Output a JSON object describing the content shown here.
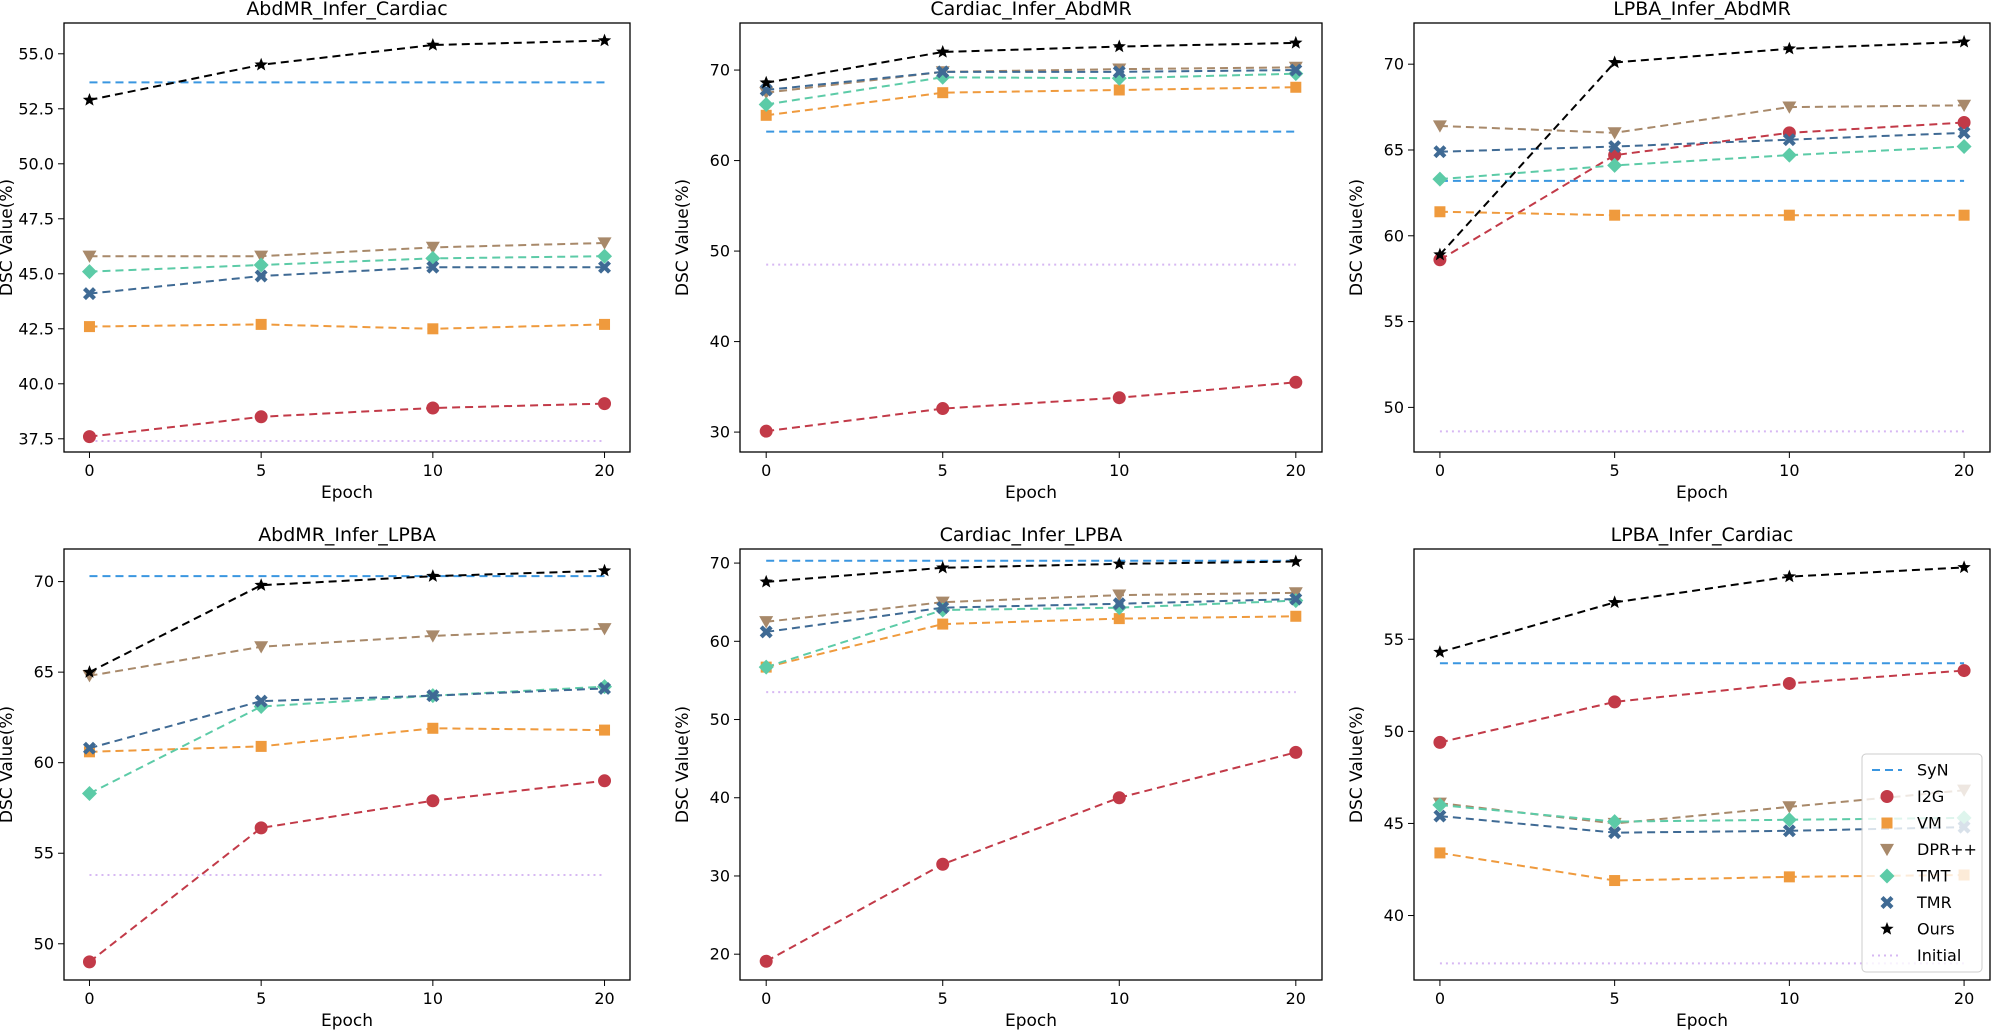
{
  "chart_data": {
    "type": "line",
    "x_categories": [
      "0",
      "5",
      "10",
      "20"
    ],
    "xlabel": "Epoch",
    "ylabel": "DSC Value(%)",
    "series_styles": {
      "SyN": {
        "color": "#3a96e0",
        "marker": "none",
        "dash": "dashed"
      },
      "I2G": {
        "color": "#c23a48",
        "marker": "circle",
        "dash": "dashed"
      },
      "VM": {
        "color": "#ef9a3d",
        "marker": "square",
        "dash": "dashed"
      },
      "DPR++": {
        "color": "#a8896a",
        "marker": "triangle",
        "dash": "dashed"
      },
      "TMT": {
        "color": "#5ccba7",
        "marker": "diamond",
        "dash": "dashed"
      },
      "TMR": {
        "color": "#3f6a94",
        "marker": "x",
        "dash": "dashed"
      },
      "Ours": {
        "color": "#000000",
        "marker": "star",
        "dash": "dashed"
      },
      "Initial": {
        "color": "#d7b8f3",
        "marker": "none",
        "dash": "dotted"
      }
    },
    "legend": {
      "position": "lower-right of LPBA_Infer_Cardiac panel",
      "entries": [
        "SyN",
        "I2G",
        "VM",
        "DPR++",
        "TMT",
        "TMR",
        "Ours",
        "Initial"
      ]
    },
    "panels": [
      {
        "title": "AbdMR_Infer_Cardiac",
        "ylim": [
          36.9,
          56.4
        ],
        "yticks": [
          "37.5",
          "40.0",
          "42.5",
          "45.0",
          "47.5",
          "50.0",
          "52.5",
          "55.0"
        ],
        "series": [
          {
            "name": "SyN",
            "values": [
              53.7,
              53.7,
              53.7,
              53.7
            ]
          },
          {
            "name": "Initial",
            "values": [
              37.4,
              37.4,
              37.4,
              37.4
            ]
          },
          {
            "name": "I2G",
            "values": [
              37.6,
              38.5,
              38.9,
              39.1
            ]
          },
          {
            "name": "VM",
            "values": [
              42.6,
              42.7,
              42.5,
              42.7
            ]
          },
          {
            "name": "DPR++",
            "values": [
              45.8,
              45.8,
              46.2,
              46.4
            ]
          },
          {
            "name": "TMT",
            "values": [
              45.1,
              45.4,
              45.7,
              45.8
            ]
          },
          {
            "name": "TMR",
            "values": [
              44.1,
              44.9,
              45.3,
              45.3
            ]
          },
          {
            "name": "Ours",
            "values": [
              52.9,
              54.5,
              55.4,
              55.6
            ]
          }
        ]
      },
      {
        "title": "Cardiac_Infer_AbdMR",
        "ylim": [
          27.8,
          75.2
        ],
        "yticks": [
          "30",
          "40",
          "50",
          "60",
          "70"
        ],
        "series": [
          {
            "name": "SyN",
            "values": [
              63.2,
              63.2,
              63.2,
              63.2
            ]
          },
          {
            "name": "Initial",
            "values": [
              48.5,
              48.5,
              48.5,
              48.5
            ]
          },
          {
            "name": "I2G",
            "values": [
              30.1,
              32.6,
              33.8,
              35.5
            ]
          },
          {
            "name": "VM",
            "values": [
              65.0,
              67.5,
              67.8,
              68.1
            ]
          },
          {
            "name": "DPR++",
            "values": [
              67.5,
              69.8,
              70.1,
              70.3
            ]
          },
          {
            "name": "TMT",
            "values": [
              66.2,
              69.2,
              69.1,
              69.6
            ]
          },
          {
            "name": "TMR",
            "values": [
              67.8,
              69.8,
              69.8,
              70.0
            ]
          },
          {
            "name": "Ours",
            "values": [
              68.6,
              72.0,
              72.6,
              73.0
            ]
          }
        ]
      },
      {
        "title": "LPBA_Infer_AbdMR",
        "ylim": [
          47.4,
          72.4
        ],
        "yticks": [
          "50",
          "55",
          "60",
          "65",
          "70"
        ],
        "series": [
          {
            "name": "SyN",
            "values": [
              63.2,
              63.2,
              63.2,
              63.2
            ]
          },
          {
            "name": "Initial",
            "values": [
              48.6,
              48.6,
              48.6,
              48.6
            ]
          },
          {
            "name": "I2G",
            "values": [
              58.6,
              64.7,
              66.0,
              66.6
            ]
          },
          {
            "name": "VM",
            "values": [
              61.4,
              61.2,
              61.2,
              61.2
            ]
          },
          {
            "name": "DPR++",
            "values": [
              66.4,
              66.0,
              67.5,
              67.6
            ]
          },
          {
            "name": "TMT",
            "values": [
              63.3,
              64.1,
              64.7,
              65.2
            ]
          },
          {
            "name": "TMR",
            "values": [
              64.9,
              65.2,
              65.6,
              66.0
            ]
          },
          {
            "name": "Ours",
            "values": [
              58.9,
              70.1,
              70.9,
              71.3
            ]
          }
        ]
      },
      {
        "title": "AbdMR_Infer_LPBA",
        "ylim": [
          48.0,
          71.8
        ],
        "yticks": [
          "50",
          "55",
          "60",
          "65",
          "70"
        ],
        "series": [
          {
            "name": "SyN",
            "values": [
              70.3,
              70.3,
              70.3,
              70.3
            ]
          },
          {
            "name": "Initial",
            "values": [
              53.8,
              53.8,
              53.8,
              53.8
            ]
          },
          {
            "name": "I2G",
            "values": [
              49.0,
              56.4,
              57.9,
              59.0
            ]
          },
          {
            "name": "VM",
            "values": [
              60.6,
              60.9,
              61.9,
              61.8
            ]
          },
          {
            "name": "DPR++",
            "values": [
              64.8,
              66.4,
              67.0,
              67.4
            ]
          },
          {
            "name": "TMT",
            "values": [
              58.3,
              63.1,
              63.7,
              64.2
            ]
          },
          {
            "name": "TMR",
            "values": [
              60.8,
              63.4,
              63.7,
              64.1
            ]
          },
          {
            "name": "Ours",
            "values": [
              65.0,
              69.8,
              70.3,
              70.6
            ]
          }
        ]
      },
      {
        "title": "Cardiac_Infer_LPBA",
        "ylim": [
          16.7,
          71.8
        ],
        "yticks": [
          "20",
          "30",
          "40",
          "50",
          "60",
          "70"
        ],
        "series": [
          {
            "name": "SyN",
            "values": [
              70.3,
              70.3,
              70.3,
              70.3
            ]
          },
          {
            "name": "Initial",
            "values": [
              53.5,
              53.5,
              53.5,
              53.5
            ]
          },
          {
            "name": "I2G",
            "values": [
              19.1,
              31.5,
              40.0,
              45.8
            ]
          },
          {
            "name": "VM",
            "values": [
              56.7,
              62.2,
              62.9,
              63.2
            ]
          },
          {
            "name": "DPR++",
            "values": [
              62.5,
              65.0,
              65.9,
              66.2
            ]
          },
          {
            "name": "TMT",
            "values": [
              56.7,
              64.0,
              64.3,
              65.2
            ]
          },
          {
            "name": "TMR",
            "values": [
              61.2,
              64.3,
              64.8,
              65.4
            ]
          },
          {
            "name": "Ours",
            "values": [
              67.6,
              69.4,
              69.9,
              70.2
            ]
          }
        ]
      },
      {
        "title": "LPBA_Infer_Cardiac",
        "ylim": [
          36.5,
          59.9
        ],
        "yticks": [
          "40",
          "45",
          "50",
          "55"
        ],
        "series": [
          {
            "name": "SyN",
            "values": [
              53.7,
              53.7,
              53.7,
              53.7
            ]
          },
          {
            "name": "Initial",
            "values": [
              37.4,
              37.4,
              37.4,
              37.4
            ]
          },
          {
            "name": "I2G",
            "values": [
              49.4,
              51.6,
              52.6,
              53.3
            ]
          },
          {
            "name": "VM",
            "values": [
              43.4,
              41.9,
              42.1,
              42.2
            ]
          },
          {
            "name": "DPR++",
            "values": [
              46.1,
              45.0,
              45.9,
              46.8
            ]
          },
          {
            "name": "TMT",
            "values": [
              46.0,
              45.1,
              45.2,
              45.3
            ]
          },
          {
            "name": "TMR",
            "values": [
              45.4,
              44.5,
              44.6,
              44.8
            ]
          },
          {
            "name": "Ours",
            "values": [
              54.3,
              57.0,
              58.4,
              58.9
            ]
          }
        ]
      }
    ]
  }
}
